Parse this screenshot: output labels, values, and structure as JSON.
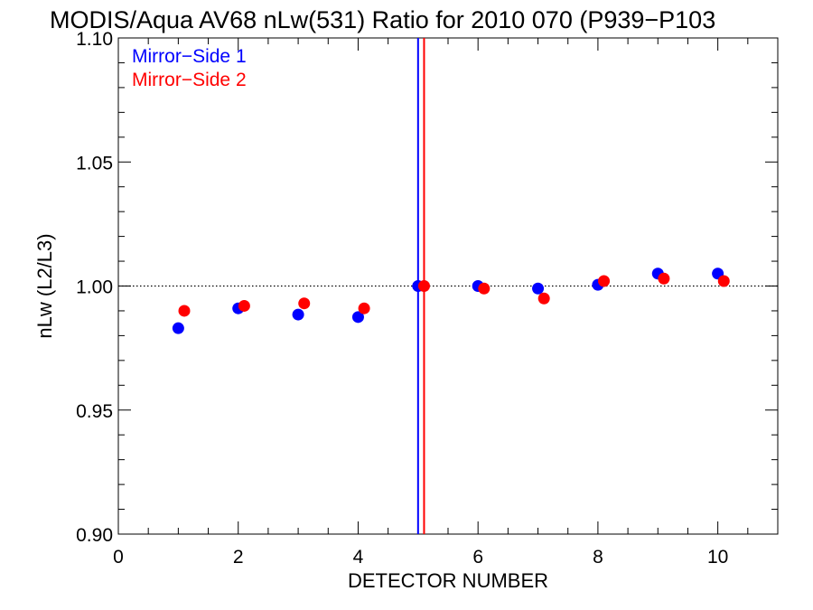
{
  "chart_data": {
    "type": "scatter",
    "title": "MODIS/Aqua AV68 nLw(531) Ratio for 2010 070 (P939−P103",
    "xlabel": "DETECTOR NUMBER",
    "ylabel": "nLw (L2/L3)",
    "xlim": [
      0,
      11
    ],
    "ylim": [
      0.9,
      1.1
    ],
    "xticks": [
      0,
      2,
      4,
      6,
      8,
      10
    ],
    "xtick_labels": [
      "0",
      "2",
      "4",
      "6",
      "8",
      "10"
    ],
    "yticks": [
      0.9,
      0.95,
      1.0,
      1.05,
      1.1
    ],
    "ytick_labels": [
      "0.90",
      "0.95",
      "1.00",
      "1.05",
      "1.10"
    ],
    "reference_line_y": 1.0,
    "vertical_lines": [
      {
        "x": 5.0,
        "color": "#0000ff"
      },
      {
        "x": 5.1,
        "color": "#ff0000"
      }
    ],
    "legend_position": "top-left",
    "series": [
      {
        "name": "Mirror−Side 1",
        "color": "#0000ff",
        "x": [
          1,
          2,
          3,
          4,
          5,
          6,
          7,
          8,
          9,
          10
        ],
        "y": [
          0.983,
          0.991,
          0.9885,
          0.9875,
          1.0,
          1.0,
          0.999,
          1.0005,
          1.005,
          1.005
        ]
      },
      {
        "name": "Mirror−Side 2",
        "color": "#ff0000",
        "x": [
          1.1,
          2.1,
          3.1,
          4.1,
          5.1,
          6.1,
          7.1,
          8.1,
          9.1,
          10.1
        ],
        "y": [
          0.99,
          0.992,
          0.993,
          0.991,
          1.0,
          0.999,
          0.995,
          1.002,
          1.003,
          1.002
        ]
      }
    ]
  }
}
